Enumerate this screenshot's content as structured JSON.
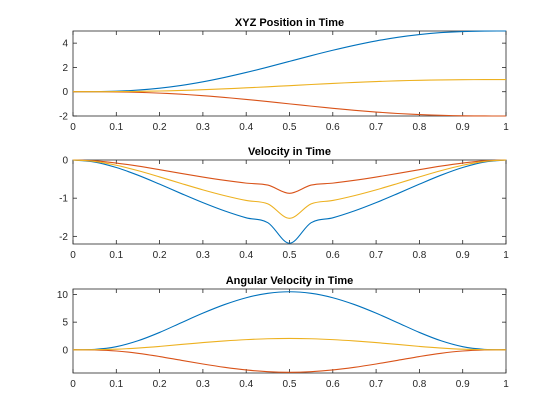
{
  "figure": {
    "background": "#ffffff"
  },
  "chart_data": [
    {
      "type": "line",
      "title": "XYZ Position in Time",
      "xlabel": "",
      "ylabel": "",
      "xlim": [
        0,
        1
      ],
      "ylim": [
        -2,
        5
      ],
      "xticks": [
        0,
        0.1,
        0.2,
        0.3,
        0.4,
        0.5,
        0.6,
        0.7,
        0.8,
        0.9,
        1
      ],
      "xtick_labels": [
        "0",
        "0.1",
        "0.2",
        "0.3",
        "0.4",
        "0.5",
        "0.6",
        "0.7",
        "0.8",
        "0.9",
        "1"
      ],
      "yticks": [
        -2,
        0,
        2,
        4
      ],
      "ytick_labels": [
        "-2",
        "0",
        "2",
        "4"
      ],
      "grid": false,
      "x": [
        0,
        0.05,
        0.1,
        0.15,
        0.2,
        0.25,
        0.3,
        0.35,
        0.4,
        0.45,
        0.5,
        0.55,
        0.6,
        0.65,
        0.7,
        0.75,
        0.8,
        0.85,
        0.9,
        0.95,
        1
      ],
      "series": [
        {
          "color": "#0072BD",
          "values": [
            0,
            0.004,
            0.043,
            0.133,
            0.29,
            0.516,
            0.815,
            1.176,
            1.586,
            2.031,
            2.5,
            2.969,
            3.414,
            3.824,
            4.185,
            4.484,
            4.71,
            4.867,
            4.957,
            4.996,
            5
          ]
        },
        {
          "color": "#D95319",
          "values": [
            0,
            -0.002,
            -0.017,
            -0.053,
            -0.116,
            -0.207,
            -0.326,
            -0.47,
            -0.634,
            -0.813,
            -1.0,
            -1.187,
            -1.366,
            -1.53,
            -1.674,
            -1.793,
            -1.884,
            -1.947,
            -1.983,
            -1.998,
            -2
          ]
        },
        {
          "color": "#EDB120",
          "values": [
            0,
            0.001,
            0.009,
            0.027,
            0.058,
            0.103,
            0.163,
            0.235,
            0.317,
            0.406,
            0.5,
            0.594,
            0.683,
            0.765,
            0.837,
            0.897,
            0.942,
            0.973,
            0.991,
            0.999,
            1
          ]
        }
      ]
    },
    {
      "type": "line",
      "title": "Velocity in Time",
      "xlabel": "",
      "ylabel": "",
      "xlim": [
        0,
        1
      ],
      "ylim": [
        -2.2,
        0
      ],
      "xticks": [
        0,
        0.1,
        0.2,
        0.3,
        0.4,
        0.5,
        0.6,
        0.7,
        0.8,
        0.9,
        1
      ],
      "xtick_labels": [
        "0",
        "0.1",
        "0.2",
        "0.3",
        "0.4",
        "0.5",
        "0.6",
        "0.7",
        "0.8",
        "0.9",
        "1"
      ],
      "yticks": [
        -2,
        -1,
        0
      ],
      "ytick_labels": [
        "-2",
        "-1",
        "0"
      ],
      "grid": false,
      "x": [
        0,
        0.05,
        0.1,
        0.15,
        0.2,
        0.25,
        0.3,
        0.35,
        0.4,
        0.45,
        0.5,
        0.55,
        0.6,
        0.65,
        0.7,
        0.75,
        0.8,
        0.85,
        0.9,
        0.95,
        1
      ],
      "series": [
        {
          "color": "#0072BD",
          "values": [
            0,
            -0.054,
            -0.197,
            -0.398,
            -0.633,
            -0.879,
            -1.117,
            -1.333,
            -1.514,
            -1.642,
            -2.18,
            -1.642,
            -1.514,
            -1.333,
            -1.117,
            -0.879,
            -0.633,
            -0.398,
            -0.197,
            -0.054,
            0
          ]
        },
        {
          "color": "#D95319",
          "values": [
            0,
            -0.022,
            -0.079,
            -0.159,
            -0.253,
            -0.352,
            -0.447,
            -0.533,
            -0.606,
            -0.657,
            -0.872,
            -0.657,
            -0.606,
            -0.533,
            -0.447,
            -0.352,
            -0.253,
            -0.159,
            -0.079,
            -0.022,
            0
          ]
        },
        {
          "color": "#EDB120",
          "values": [
            0,
            -0.038,
            -0.138,
            -0.279,
            -0.443,
            -0.615,
            -0.782,
            -0.933,
            -1.06,
            -1.149,
            -1.526,
            -1.149,
            -1.06,
            -0.933,
            -0.782,
            -0.615,
            -0.443,
            -0.279,
            -0.138,
            -0.038,
            0
          ]
        }
      ]
    },
    {
      "type": "line",
      "title": "Angular Velocity in Time",
      "xlabel": "",
      "ylabel": "",
      "xlim": [
        0,
        1
      ],
      "ylim": [
        -4.2,
        11
      ],
      "xticks": [
        0,
        0.1,
        0.2,
        0.3,
        0.4,
        0.5,
        0.6,
        0.7,
        0.8,
        0.9,
        1
      ],
      "xtick_labels": [
        "0",
        "0.1",
        "0.2",
        "0.3",
        "0.4",
        "0.5",
        "0.6",
        "0.7",
        "0.8",
        "0.9",
        "1"
      ],
      "yticks": [
        0,
        5,
        10
      ],
      "ytick_labels": [
        "0",
        "5",
        "10"
      ],
      "grid": false,
      "x": [
        0,
        0.05,
        0.1,
        0.15,
        0.2,
        0.25,
        0.3,
        0.35,
        0.4,
        0.45,
        0.5,
        0.55,
        0.6,
        0.65,
        0.7,
        0.75,
        0.8,
        0.85,
        0.9,
        0.95,
        1
      ],
      "series": [
        {
          "color": "#0072BD",
          "values": [
            0,
            0.076,
            0.564,
            1.63,
            3.14,
            4.9,
            6.63,
            8.18,
            9.42,
            10.22,
            10.5,
            10.22,
            9.42,
            8.18,
            6.63,
            4.9,
            3.14,
            1.63,
            0.564,
            0.076,
            0
          ]
        },
        {
          "color": "#D95319",
          "values": [
            0,
            -0.03,
            -0.22,
            -0.63,
            -1.22,
            -1.9,
            -2.57,
            -3.17,
            -3.65,
            -3.96,
            -4.07,
            -3.96,
            -3.65,
            -3.17,
            -2.57,
            -1.9,
            -1.22,
            -0.63,
            -0.22,
            -0.03,
            0
          ]
        },
        {
          "color": "#EDB120",
          "values": [
            0,
            0.015,
            0.11,
            0.32,
            0.61,
            0.96,
            1.3,
            1.6,
            1.84,
            2.0,
            2.05,
            2.0,
            1.84,
            1.6,
            1.3,
            0.96,
            0.61,
            0.32,
            0.11,
            0.015,
            0
          ]
        }
      ]
    }
  ]
}
